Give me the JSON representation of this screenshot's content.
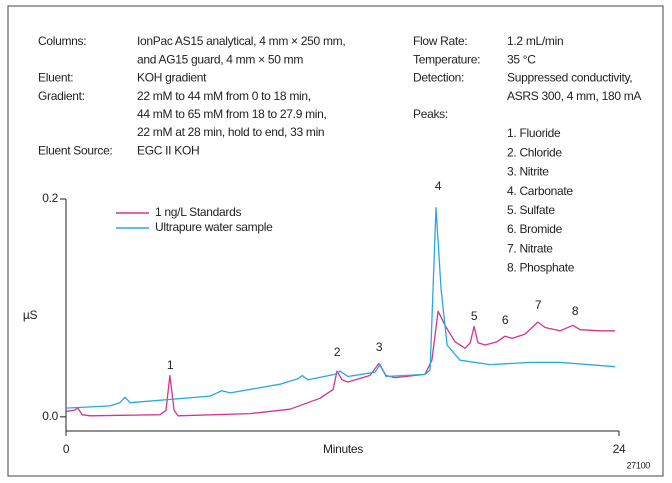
{
  "chart_data": {
    "type": "line",
    "conditions_left": [
      {
        "label": "Columns:",
        "lines": [
          "IonPac AS15 analytical, 4 mm × 250 mm,",
          "and AG15 guard, 4 mm × 50 mm"
        ]
      },
      {
        "label": "Eluent:",
        "lines": [
          "KOH gradient"
        ]
      },
      {
        "label": "Gradient:",
        "lines": [
          "22 mM to 44 mM from 0 to 18 min,",
          "44 mM to 65 mM from 18 to 27.9 min,",
          "22 mM at 28 min, hold to end, 33 min"
        ]
      },
      {
        "label": "Eluent Source:",
        "lines": [
          "EGC II KOH"
        ]
      }
    ],
    "conditions_right": [
      {
        "label": "Flow Rate:",
        "lines": [
          "1.2 mL/min"
        ]
      },
      {
        "label": "Temperature:",
        "lines": [
          "35 °C"
        ]
      },
      {
        "label": "Detection:",
        "lines": [
          "Suppressed conductivity,",
          "ASRS 300, 4 mm, 180 mA"
        ]
      },
      {
        "label": "Peaks:",
        "lines": []
      }
    ],
    "peaks": [
      "1. Fluoride",
      "2. Chloride",
      "3. Nitrite",
      "4. Carbonate",
      "5. Sulfate",
      "6. Bromide",
      "7. Nitrate",
      "8. Phosphate"
    ],
    "peak_labels": [
      "1",
      "2",
      "3",
      "4",
      "5",
      "6",
      "7",
      "8"
    ],
    "x_label": "Minutes",
    "y_label": "µS",
    "figure_id": "27100",
    "xlim": [
      0,
      24
    ],
    "xticks": [
      0,
      24
    ],
    "ylim": [
      -0.013,
      0.2
    ],
    "yticks": [
      {
        "value": 0,
        "label": "0.0"
      },
      {
        "value": 0.2,
        "label": "0.2"
      }
    ],
    "series": [
      {
        "name": "1 ng/L Standards",
        "color": "#d6338f",
        "x": [
          0,
          0.35,
          0.52,
          0.69,
          1.04,
          4.08,
          4.34,
          4.51,
          4.69,
          4.86,
          7.99,
          9.72,
          11.02,
          11.59,
          11.76,
          11.98,
          12.24,
          13.19,
          13.58,
          13.89,
          14.28,
          15.58,
          15.88,
          16.15,
          16.45,
          16.88,
          17.32,
          17.54,
          17.71,
          17.88,
          18.19,
          18.71,
          19.05,
          19.36,
          19.92,
          20.48,
          20.79,
          21.44,
          22.0,
          22.31,
          23.18,
          23.83
        ],
        "values": [
          0.005,
          0.006,
          0.008,
          0.002,
          0.001,
          0.002,
          0.006,
          0.038,
          0.006,
          0.001,
          0.003,
          0.007,
          0.017,
          0.025,
          0.042,
          0.034,
          0.032,
          0.038,
          0.049,
          0.038,
          0.036,
          0.039,
          0.052,
          0.097,
          0.084,
          0.069,
          0.063,
          0.068,
          0.083,
          0.068,
          0.066,
          0.069,
          0.074,
          0.072,
          0.076,
          0.087,
          0.082,
          0.079,
          0.084,
          0.08,
          0.079,
          0.079
        ]
      },
      {
        "name": "Ultrapure water sample",
        "color": "#29a8e0",
        "x": [
          0,
          1.91,
          2.34,
          2.56,
          2.78,
          6.25,
          6.77,
          7.12,
          9.29,
          10.07,
          10.25,
          10.5,
          11.67,
          11.89,
          12.24,
          13.41,
          13.63,
          13.89,
          15.58,
          15.8,
          16.06,
          16.28,
          16.54,
          17.1,
          18.4,
          20.14,
          21.44,
          23.83
        ],
        "values": [
          0.008,
          0.01,
          0.013,
          0.018,
          0.013,
          0.019,
          0.024,
          0.022,
          0.03,
          0.035,
          0.038,
          0.034,
          0.039,
          0.042,
          0.037,
          0.041,
          0.048,
          0.037,
          0.039,
          0.043,
          0.192,
          0.117,
          0.066,
          0.052,
          0.048,
          0.05,
          0.05,
          0.046
        ]
      }
    ]
  }
}
